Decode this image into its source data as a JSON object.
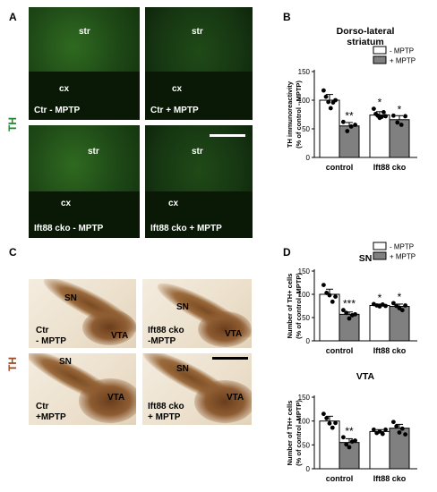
{
  "panel_labels": {
    "a": "A",
    "b": "B",
    "c": "C",
    "d": "D"
  },
  "side_labels": {
    "top": "TH",
    "bottom": "TH"
  },
  "colors": {
    "th_green": "#1b8a2a",
    "th_brown": "#a0461e",
    "bar_control": "#ffffff",
    "bar_mptp": "#808080"
  },
  "micrographs_a": [
    {
      "region_top": "str",
      "region_bottom": "cx",
      "caption": "Ctr - MPTP"
    },
    {
      "region_top": "str",
      "region_bottom": "cx",
      "caption": "Ctr + MPTP"
    },
    {
      "region_top": "str",
      "region_bottom": "cx",
      "caption": "Ift88 cko  - MPTP"
    },
    {
      "region_top": "str",
      "region_bottom": "cx",
      "caption": "Ift88 cko  + MPTP"
    }
  ],
  "micrographs_c": [
    {
      "sn": "SN",
      "vta": "VTA",
      "caption_line1": "Ctr",
      "caption_line2": "- MPTP"
    },
    {
      "sn": "SN",
      "vta": "VTA",
      "caption_line1": "Ift88 cko",
      "caption_line2": "-MPTP"
    },
    {
      "sn": "SN",
      "vta": "VTA",
      "caption_line1": "Ctr",
      "caption_line2": "+MPTP"
    },
    {
      "sn": "SN",
      "vta": "VTA",
      "caption_line1": "Ift88 cko",
      "caption_line2": "+ MPTP"
    }
  ],
  "chart_data": [
    {
      "type": "bar",
      "panel": "B",
      "title": [
        "Dorso-lateral",
        "striatum"
      ],
      "ylabel": [
        "TH immunoreactivity",
        "(% of control - MPTP)"
      ],
      "categories": [
        "control",
        "Ift88 cko"
      ],
      "legend": [
        "- MPTP",
        "+ MPTP"
      ],
      "legend_placement": "top-right",
      "ylim": [
        0,
        150
      ],
      "yticks": [
        0,
        50,
        100,
        150
      ],
      "series": [
        {
          "name": "- MPTP",
          "values": [
            100,
            74
          ],
          "errors": [
            10,
            6
          ],
          "points": [
            [
              117,
              106,
              97,
              86,
              96,
              100
            ],
            [
              85,
              76,
              73,
              69,
              71,
              79,
              72
            ]
          ],
          "sig": [
            "",
            "*"
          ]
        },
        {
          "name": "+ MPTP",
          "values": [
            55,
            66
          ],
          "errors": [
            6,
            7
          ],
          "points": [
            [
              62,
              46,
              54,
              57
            ],
            [
              73,
              61,
              57,
              72
            ]
          ],
          "sig": [
            "**",
            "*"
          ]
        }
      ]
    },
    {
      "type": "bar",
      "panel": "D",
      "title": [
        "SN"
      ],
      "ylabel": [
        "Number of TH+ cells",
        "(% of control -MPTP)"
      ],
      "categories": [
        "control",
        "Ift88 cko"
      ],
      "legend": [
        "- MPTP",
        "+ MPTP"
      ],
      "legend_placement": "top-right",
      "ylim": [
        0,
        150
      ],
      "yticks": [
        0,
        50,
        100,
        150
      ],
      "series": [
        {
          "name": "- MPTP",
          "values": [
            100,
            76
          ],
          "errors": [
            11,
            3
          ],
          "points": [
            [
              120,
              103,
              98,
              84,
              95
            ],
            [
              79,
              76,
              74,
              78,
              75
            ]
          ],
          "sig": [
            "",
            "*"
          ]
        },
        {
          "name": "+ MPTP",
          "values": [
            57,
            74
          ],
          "errors": [
            5,
            5
          ],
          "points": [
            [
              66,
              60,
              48,
              55,
              57
            ],
            [
              81,
              75,
              70,
              66,
              76
            ]
          ],
          "sig": [
            "***",
            "*"
          ]
        }
      ]
    },
    {
      "type": "bar",
      "panel": "D",
      "title": [
        "VTA"
      ],
      "ylabel": [
        "Number of TH+ cells",
        "(% of control -MPTP)"
      ],
      "categories": [
        "control",
        "Ift88 cko"
      ],
      "ylim": [
        0,
        150
      ],
      "yticks": [
        0,
        50,
        100,
        150
      ],
      "series": [
        {
          "name": "- MPTP",
          "values": [
            100,
            78
          ],
          "errors": [
            10,
            4
          ],
          "points": [
            [
              115,
              106,
              95,
              86,
              96
            ],
            [
              82,
              75,
              78,
              73,
              82
            ]
          ],
          "sig": [
            "",
            ""
          ]
        },
        {
          "name": "+ MPTP",
          "values": [
            55,
            85
          ],
          "errors": [
            8,
            8
          ],
          "points": [
            [
              66,
              51,
              45,
              57,
              59
            ],
            [
              98,
              89,
              76,
              84,
              72
            ]
          ],
          "sig": [
            "**",
            ""
          ]
        }
      ]
    }
  ]
}
